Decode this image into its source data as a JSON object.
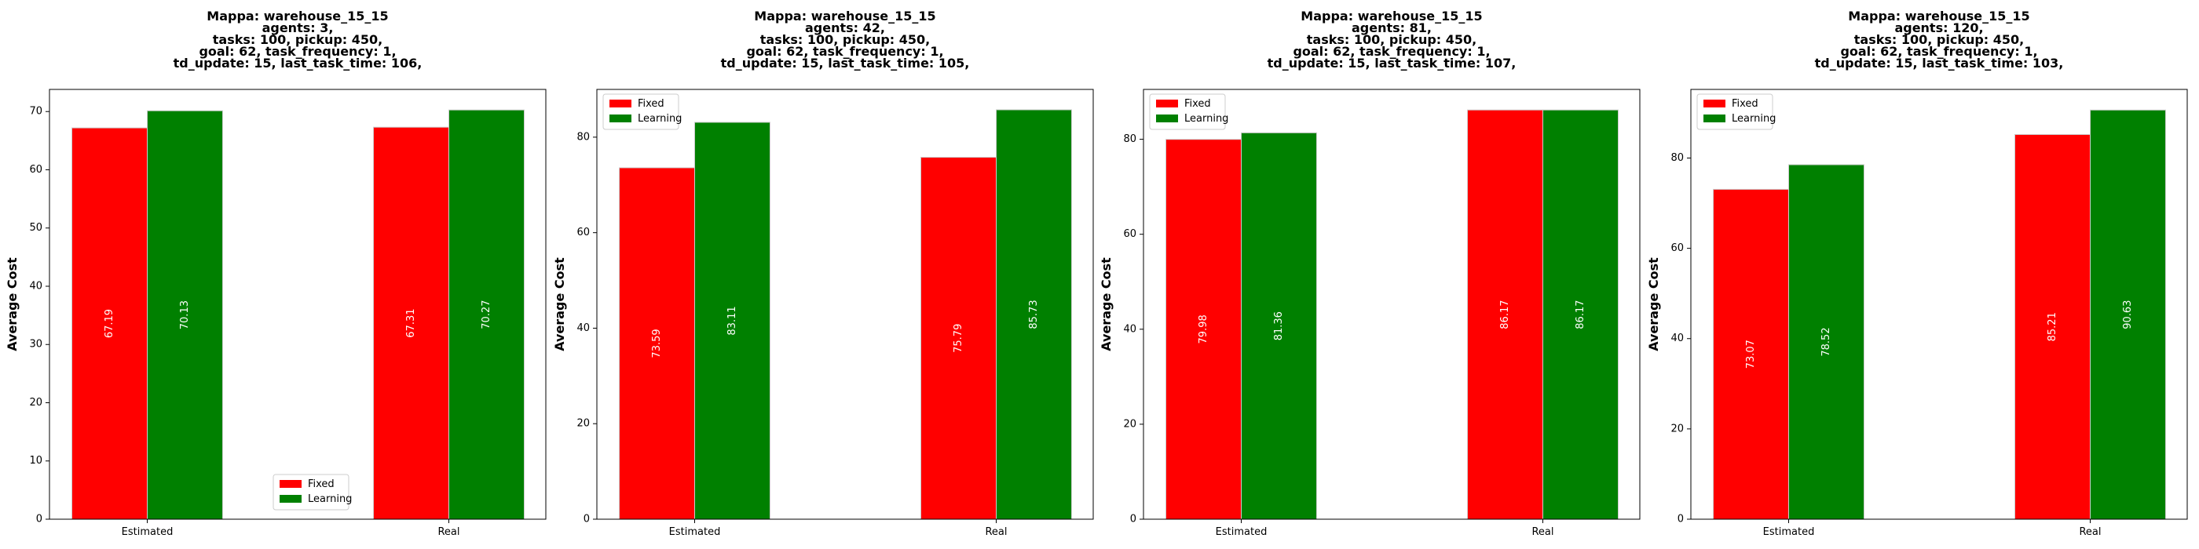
{
  "chart_data": [
    {
      "type": "bar",
      "title_lines": [
        "Mappa: warehouse_15_15",
        "agents: 3,",
        "tasks: 100, pickup: 450,",
        "goal: 62, task_frequency: 1,",
        "td_update: 15, last_task_time: 106,"
      ],
      "ylabel": "Average Cost",
      "categories": [
        "Estimated",
        "Real"
      ],
      "series": [
        {
          "name": "Fixed",
          "color": "#ff0000",
          "values": [
            67.19,
            67.31
          ],
          "labels": [
            "67.19",
            "67.31"
          ]
        },
        {
          "name": "Learning",
          "color": "#008000",
          "values": [
            70.13,
            70.27
          ],
          "labels": [
            "70.13",
            "70.27"
          ]
        }
      ],
      "ylim": [
        0,
        73.8
      ],
      "yticks": [
        0,
        10,
        20,
        30,
        40,
        50,
        60,
        70
      ],
      "legend": "lower-center",
      "grid": false
    },
    {
      "type": "bar",
      "title_lines": [
        "Mappa: warehouse_15_15",
        "agents: 42,",
        "tasks: 100, pickup: 450,",
        "goal: 62, task_frequency: 1,",
        "td_update: 15, last_task_time: 105,"
      ],
      "ylabel": "Average Cost",
      "categories": [
        "Estimated",
        "Real"
      ],
      "series": [
        {
          "name": "Fixed",
          "color": "#ff0000",
          "values": [
            73.59,
            75.79
          ],
          "labels": [
            "73.59",
            "75.79"
          ]
        },
        {
          "name": "Learning",
          "color": "#008000",
          "values": [
            83.11,
            85.73
          ],
          "labels": [
            "83.11",
            "85.73"
          ]
        }
      ],
      "ylim": [
        0,
        90.0
      ],
      "yticks": [
        0,
        20,
        40,
        60,
        80
      ],
      "legend": "upper-left",
      "grid": false
    },
    {
      "type": "bar",
      "title_lines": [
        "Mappa: warehouse_15_15",
        "agents: 81,",
        "tasks: 100, pickup: 450,",
        "goal: 62, task_frequency: 1,",
        "td_update: 15, last_task_time: 107,"
      ],
      "ylabel": "Average Cost",
      "categories": [
        "Estimated",
        "Real"
      ],
      "series": [
        {
          "name": "Fixed",
          "color": "#ff0000",
          "values": [
            79.98,
            86.17
          ],
          "labels": [
            "79.98",
            "86.17"
          ]
        },
        {
          "name": "Learning",
          "color": "#008000",
          "values": [
            81.36,
            86.17
          ],
          "labels": [
            "81.36",
            "86.17"
          ]
        }
      ],
      "ylim": [
        0,
        90.5
      ],
      "yticks": [
        0,
        20,
        40,
        60,
        80
      ],
      "legend": "upper-left",
      "grid": false
    },
    {
      "type": "bar",
      "title_lines": [
        "Mappa: warehouse_15_15",
        "agents: 120,",
        "tasks: 100, pickup: 450,",
        "goal: 62, task_frequency: 1,",
        "td_update: 15, last_task_time: 103,"
      ],
      "ylabel": "Average Cost",
      "categories": [
        "Estimated",
        "Real"
      ],
      "series": [
        {
          "name": "Fixed",
          "color": "#ff0000",
          "values": [
            73.07,
            85.21
          ],
          "labels": [
            "73.07",
            "85.21"
          ]
        },
        {
          "name": "Learning",
          "color": "#008000",
          "values": [
            78.52,
            90.63
          ],
          "labels": [
            "78.52",
            "90.63"
          ]
        }
      ],
      "ylim": [
        0,
        95.2
      ],
      "yticks": [
        0,
        20,
        40,
        60,
        80
      ],
      "legend": "upper-left",
      "grid": false
    }
  ]
}
